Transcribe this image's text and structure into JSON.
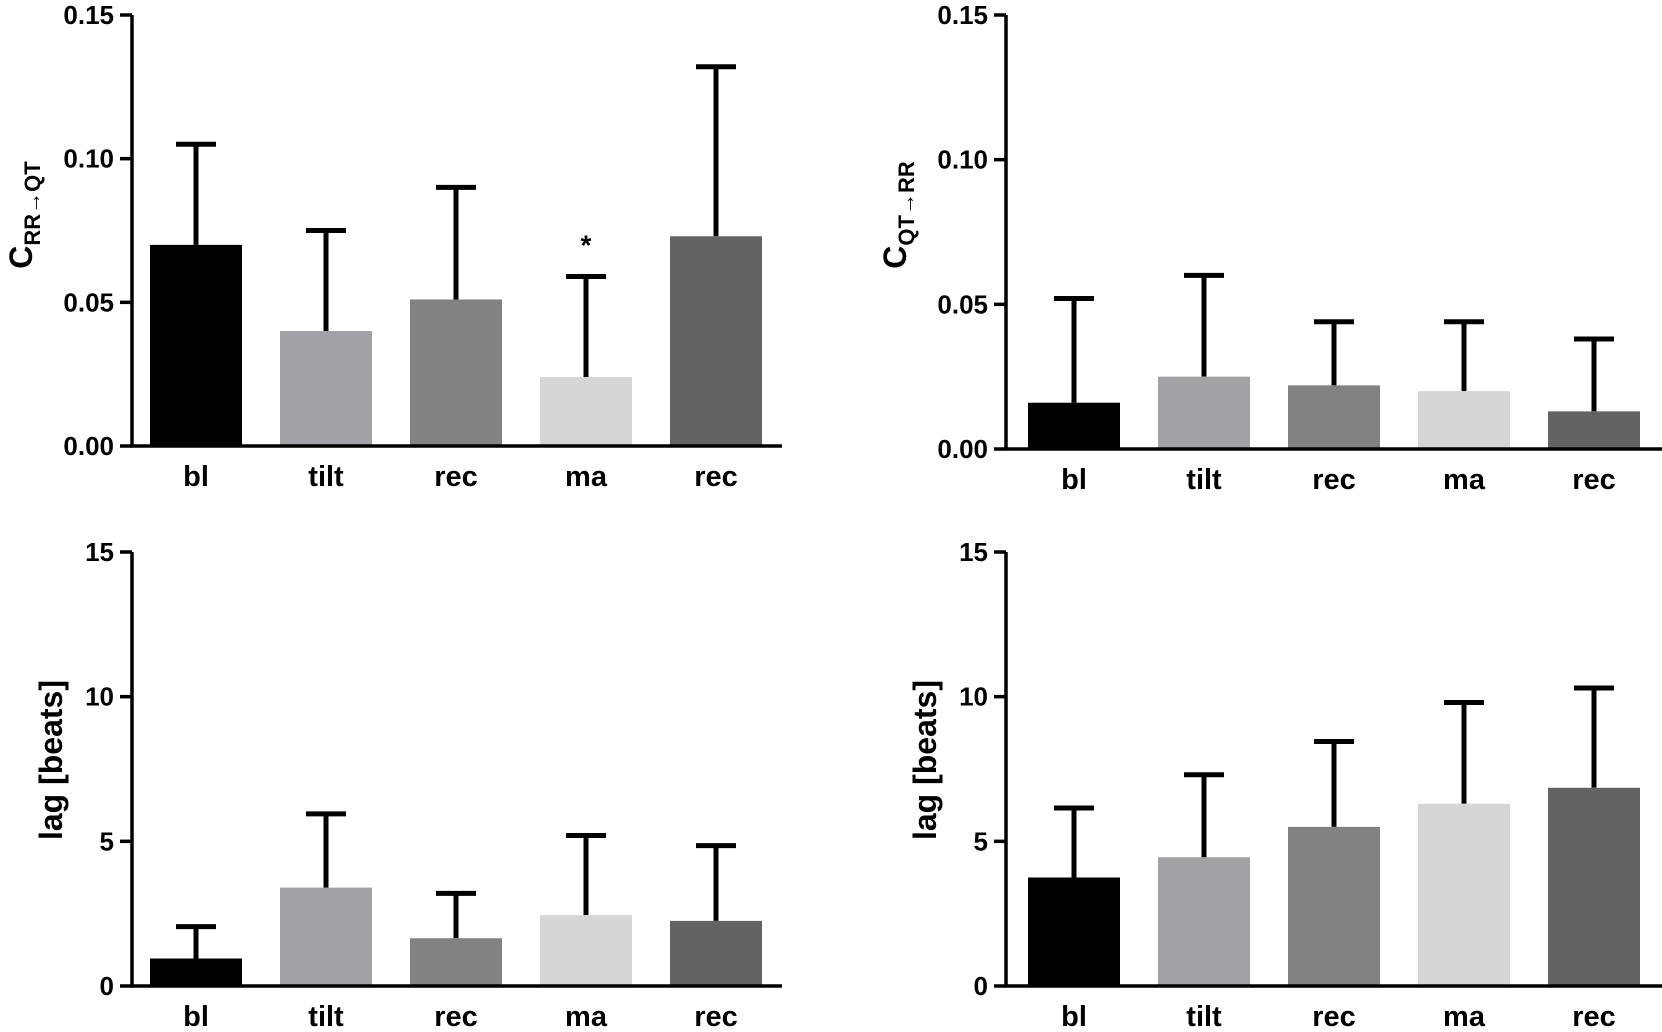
{
  "chart_data": [
    {
      "type": "bar",
      "panel": "top-left",
      "ylabel": "C",
      "ylabel_sub": "RR→QT",
      "categories": [
        "bl",
        "tilt",
        "rec",
        "ma",
        "rec"
      ],
      "colors": [
        "#000000",
        "#a2a2a6",
        "#828282",
        "#d6d6d6",
        "#636363"
      ],
      "values": [
        0.07,
        0.04,
        0.051,
        0.024,
        0.073
      ],
      "errors": [
        0.035,
        0.035,
        0.039,
        0.035,
        0.059
      ],
      "annotations": [
        {
          "category_index": 3,
          "text": "*"
        }
      ],
      "ylim": [
        0,
        0.15
      ],
      "yticks": [
        "0.00",
        "0.05",
        "0.10",
        "0.15"
      ]
    },
    {
      "type": "bar",
      "panel": "top-right",
      "ylabel": "C",
      "ylabel_sub": "QT→RR",
      "categories": [
        "bl",
        "tilt",
        "rec",
        "ma",
        "rec"
      ],
      "colors": [
        "#000000",
        "#a2a2a6",
        "#828282",
        "#d6d6d6",
        "#636363"
      ],
      "values": [
        0.016,
        0.025,
        0.022,
        0.02,
        0.013
      ],
      "errors": [
        0.036,
        0.035,
        0.022,
        0.024,
        0.025
      ],
      "annotations": [],
      "ylim": [
        0,
        0.15
      ],
      "yticks": [
        "0.00",
        "0.05",
        "0.10",
        "0.15"
      ]
    },
    {
      "type": "bar",
      "panel": "bottom-left",
      "ylabel": "lag [beats]",
      "ylabel_sub": "",
      "categories": [
        "bl",
        "tilt",
        "rec",
        "ma",
        "rec"
      ],
      "colors": [
        "#000000",
        "#a2a2a6",
        "#828282",
        "#d6d6d6",
        "#636363"
      ],
      "values": [
        0.95,
        3.4,
        1.65,
        2.45,
        2.25
      ],
      "errors": [
        1.1,
        2.55,
        1.55,
        2.75,
        2.6
      ],
      "annotations": [],
      "ylim": [
        0,
        15
      ],
      "yticks": [
        "0",
        "5",
        "10",
        "15"
      ]
    },
    {
      "type": "bar",
      "panel": "bottom-right",
      "ylabel": "lag [beats]",
      "ylabel_sub": "",
      "categories": [
        "bl",
        "tilt",
        "rec",
        "ma",
        "rec"
      ],
      "colors": [
        "#000000",
        "#a2a2a6",
        "#828282",
        "#d6d6d6",
        "#636363"
      ],
      "values": [
        3.75,
        4.45,
        5.5,
        6.3,
        6.85
      ],
      "errors": [
        2.4,
        2.85,
        2.95,
        3.5,
        3.45
      ],
      "annotations": [],
      "ylim": [
        0,
        15
      ],
      "yticks": [
        "0",
        "5",
        "10",
        "15"
      ]
    }
  ]
}
